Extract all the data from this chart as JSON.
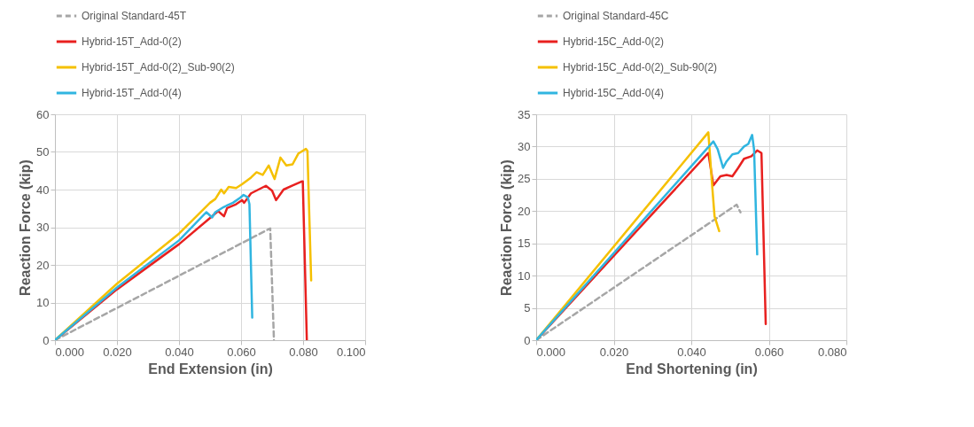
{
  "chart_data": [
    {
      "type": "line",
      "xlabel": "End Extension (in)",
      "ylabel": "Reaction Force (kip)",
      "xlim": [
        0,
        0.1
      ],
      "ylim": [
        0,
        60
      ],
      "xticks": [
        {
          "value": 0,
          "label": "0.000"
        },
        {
          "value": 0.02,
          "label": "0.020"
        },
        {
          "value": 0.04,
          "label": "0.040"
        },
        {
          "value": 0.06,
          "label": "0.060"
        },
        {
          "value": 0.08,
          "label": "0.080"
        },
        {
          "value": 0.1,
          "label": "0.100"
        }
      ],
      "yticks": [
        0,
        10,
        20,
        30,
        40,
        50,
        60
      ],
      "grid": true,
      "legend": "top",
      "series": [
        {
          "name": "Original Standard-45T",
          "color": "#a6a6a6",
          "line_style": "dashed",
          "x": [
            0,
            0.0694,
            0.0706
          ],
          "values": [
            0,
            29.7,
            0
          ]
        },
        {
          "name": "Hybrid-15T_Add-0(2)",
          "color": "#e8201f",
          "line_style": "solid",
          "x": [
            0,
            0.02,
            0.04,
            0.0502,
            0.0526,
            0.0545,
            0.0555,
            0.0584,
            0.0603,
            0.061,
            0.0632,
            0.068,
            0.07,
            0.0713,
            0.0737,
            0.0766,
            0.0794,
            0.0799,
            0.0812
          ],
          "values": [
            0,
            13.5,
            25.5,
            32.6,
            34.3,
            32.9,
            35.1,
            36.1,
            37.2,
            36.5,
            39,
            41,
            39.7,
            37.2,
            40,
            41.1,
            42.1,
            42.2,
            0
          ]
        },
        {
          "name": "Hybrid-15T_Add-0(2)_Sub-90(2)",
          "color": "#f5c000",
          "line_style": "solid",
          "x": [
            0,
            0.02,
            0.04,
            0.05,
            0.0517,
            0.0536,
            0.0545,
            0.056,
            0.0584,
            0.0603,
            0.0632,
            0.065,
            0.067,
            0.0689,
            0.0708,
            0.0727,
            0.0746,
            0.0766,
            0.0785,
            0.0809,
            0.0814,
            0.0826
          ],
          "values": [
            0,
            15,
            28.3,
            36.5,
            37.5,
            40,
            39,
            40.7,
            40.4,
            41.4,
            43.2,
            44.6,
            43.9,
            46.4,
            42.8,
            48.5,
            46.4,
            46.7,
            49.6,
            50.8,
            50.3,
            15.9
          ]
        },
        {
          "name": "Hybrid-15T_Add-0(4)",
          "color": "#30b5e0",
          "line_style": "solid",
          "x": [
            0,
            0.02,
            0.04,
            0.0488,
            0.0507,
            0.0517,
            0.0545,
            0.0574,
            0.0598,
            0.0608,
            0.0622,
            0.0627,
            0.0636
          ],
          "values": [
            0,
            14,
            26.5,
            34,
            32.6,
            34,
            35.4,
            36.5,
            37.9,
            38.6,
            37.9,
            36.1,
            6
          ]
        }
      ]
    },
    {
      "type": "line",
      "xlabel": "End Shortening (in)",
      "ylabel": "Reaction Force (kip)",
      "xlim": [
        0,
        0.08
      ],
      "ylim": [
        0,
        35
      ],
      "xticks": [
        {
          "value": 0,
          "label": "0.000"
        },
        {
          "value": 0.02,
          "label": "0.020"
        },
        {
          "value": 0.04,
          "label": "0.040"
        },
        {
          "value": 0.06,
          "label": "0.060"
        },
        {
          "value": 0.08,
          "label": "0.080"
        }
      ],
      "yticks": [
        0,
        5,
        10,
        15,
        20,
        25,
        30,
        35
      ],
      "grid": true,
      "legend": "top",
      "series": [
        {
          "name": "Original Standard-45C",
          "color": "#a6a6a6",
          "line_style": "dashed",
          "x": [
            0,
            0.0517,
            0.0527
          ],
          "values": [
            0,
            21,
            19.8
          ]
        },
        {
          "name": "Hybrid-15C_Add-0(2)",
          "color": "#e8201f",
          "line_style": "solid",
          "x": [
            0,
            0.0444,
            0.0457,
            0.0475,
            0.0491,
            0.0506,
            0.0521,
            0.0536,
            0.0555,
            0.057,
            0.0581,
            0.0592
          ],
          "values": [
            0,
            29,
            24,
            25.4,
            25.6,
            25.4,
            26.7,
            28.1,
            28.5,
            29.4,
            29,
            2.5
          ]
        },
        {
          "name": "Hybrid-15C_Add-0(2)_Sub-90(2)",
          "color": "#f5c000",
          "line_style": "solid",
          "x": [
            0,
            0.0444,
            0.0453,
            0.046,
            0.0472
          ],
          "values": [
            0,
            32.2,
            24.6,
            19.2,
            16.9
          ]
        },
        {
          "name": "Hybrid-15C_Add-0(4)",
          "color": "#30b5e0",
          "line_style": "solid",
          "x": [
            0,
            0.0457,
            0.0468,
            0.0482,
            0.0491,
            0.0506,
            0.0521,
            0.0536,
            0.0547,
            0.0557,
            0.0562,
            0.057
          ],
          "values": [
            0,
            30.8,
            29.6,
            26.7,
            27.7,
            28.8,
            29,
            30,
            30.4,
            31.8,
            29.5,
            13.3
          ]
        }
      ]
    }
  ]
}
